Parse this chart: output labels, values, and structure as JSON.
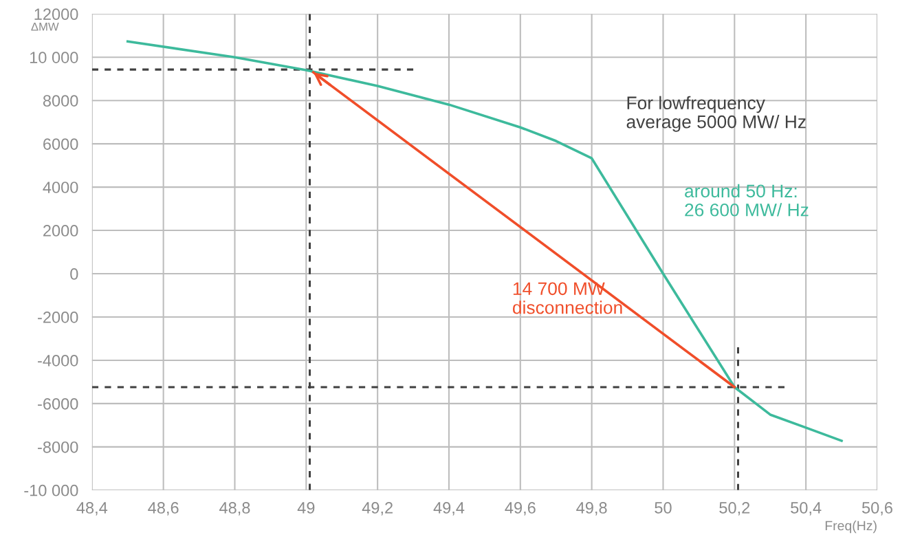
{
  "chart_data": {
    "type": "line",
    "xlabel": "Freq(Hz)",
    "ylabel": "ΔMW",
    "xlim": [
      48.4,
      50.6
    ],
    "xticks": [
      {
        "value": 48.4,
        "label": "48,4"
      },
      {
        "value": 48.6,
        "label": "48,6"
      },
      {
        "value": 48.8,
        "label": "48,8"
      },
      49,
      {
        "value": 49.2,
        "label": "49,2"
      },
      {
        "value": 49.4,
        "label": "49,4"
      },
      {
        "value": 49.6,
        "label": "49,6"
      },
      {
        "value": 49.8,
        "label": "49,8"
      },
      50,
      {
        "value": 50.2,
        "label": "50,2"
      },
      {
        "value": 50.4,
        "label": "50,4"
      },
      {
        "value": 50.6,
        "label": "50,6"
      }
    ],
    "ylim": [
      -10000,
      12000
    ],
    "yticks": [
      12000,
      {
        "value": 10000,
        "label": "10 000"
      },
      8000,
      6000,
      4000,
      2000,
      0,
      -2000,
      -4000,
      -6000,
      -8000,
      {
        "value": -10000,
        "label": "-10 000"
      }
    ],
    "grid": true,
    "legend": false,
    "series": [
      {
        "color": "#3dba9c",
        "x": [
          48.5,
          48.8,
          49.0,
          49.2,
          49.4,
          49.6,
          49.7,
          49.8,
          50.0,
          50.2,
          50.3,
          50.4,
          50.5
        ],
        "values": [
          10730,
          10000,
          9400,
          8670,
          7810,
          6760,
          6130,
          5330,
          0,
          -5240,
          -6510,
          -7110,
          -7720
        ]
      },
      {
        "color": "#f04e2a",
        "x": [
          50.2,
          49.02
        ],
        "values": [
          -5240,
          9300
        ]
      },
      {
        "color": "#404040",
        "line_style": "dashed",
        "x": [
          48.4,
          49.3
        ],
        "values": [
          9430,
          9430
        ]
      },
      {
        "color": "#404040",
        "line_style": "dashed",
        "x": [
          49.01,
          49.01
        ],
        "values": [
          -10000,
          12000
        ]
      },
      {
        "color": "#404040",
        "line_style": "dashed",
        "x": [
          48.4,
          50.34
        ],
        "values": [
          -5240,
          -5240
        ]
      },
      {
        "color": "#404040",
        "line_style": "dashed",
        "x": [
          50.21,
          50.21
        ],
        "values": [
          -10000,
          -3400
        ]
      }
    ],
    "annotations": [
      "For lowfrequency\naverage 5000 MW/ Hz",
      "around 50 Hz:\n26 600 MW/ Hz",
      "14 700 MW\ndisconnection"
    ]
  }
}
